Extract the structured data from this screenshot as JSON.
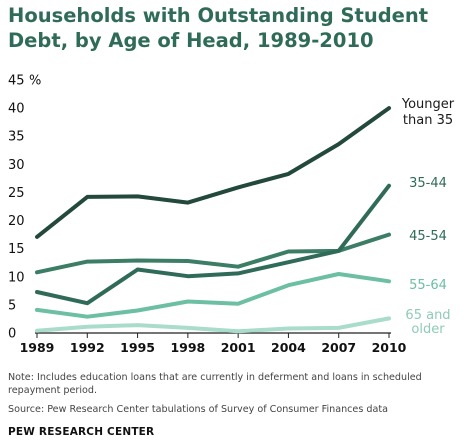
{
  "title": "Households with Outstanding Student Debt, by Age of Head, 1989-2010",
  "note": "Note: Includes education loans that are currently in deferment and loans in scheduled repayment period.",
  "source": "Source: Pew Research Center tabulations of Survey of Consumer Finances data",
  "credit": "PEW RESEARCH CENTER",
  "chart_data": {
    "type": "line",
    "title": "Households with Outstanding Student Debt, by Age of Head, 1989-2010",
    "xlabel": "",
    "ylabel": "%",
    "x": [
      "1989",
      "1992",
      "1995",
      "1998",
      "2001",
      "2004",
      "2007",
      "2010"
    ],
    "ylim": [
      0,
      45
    ],
    "yticks": [
      0,
      5,
      10,
      15,
      20,
      25,
      30,
      35,
      40,
      45
    ],
    "y_unit_label": "%",
    "grid": false,
    "series": [
      {
        "name": "Younger than 35",
        "color": "#23493d",
        "values": [
          17.1,
          24.2,
          24.3,
          23.2,
          25.9,
          28.3,
          33.6,
          40.0
        ]
      },
      {
        "name": "35-44",
        "color": "#2f6b58",
        "values": [
          7.3,
          5.3,
          11.3,
          10.1,
          10.6,
          12.6,
          14.6,
          26.2
        ]
      },
      {
        "name": "45-54",
        "color": "#3c7d66",
        "values": [
          10.8,
          12.7,
          12.9,
          12.8,
          11.8,
          14.5,
          14.6,
          17.5
        ]
      },
      {
        "name": "55-64",
        "color": "#6cbfa3",
        "values": [
          4.1,
          2.9,
          4.0,
          5.6,
          5.2,
          8.5,
          10.5,
          9.2
        ]
      },
      {
        "name": "65 and older",
        "color": "#a9dccb",
        "values": [
          0.4,
          1.1,
          1.4,
          0.9,
          0.3,
          0.8,
          0.9,
          2.6
        ]
      }
    ],
    "label_lines": {
      "Younger than 35": [
        "Younger",
        "than 35"
      ],
      "35-44": [
        "35-44"
      ],
      "45-54": [
        "45-54"
      ],
      "55-64": [
        "55-64"
      ],
      "65 and older": [
        "65 and",
        "older"
      ]
    },
    "label_colors": {
      "Younger than 35": "#1a1a1a",
      "35-44": "#2f6b58",
      "45-54": "#2f6b58",
      "55-64": "#6cbfa3",
      "65 and older": "#8fcbb6"
    }
  }
}
